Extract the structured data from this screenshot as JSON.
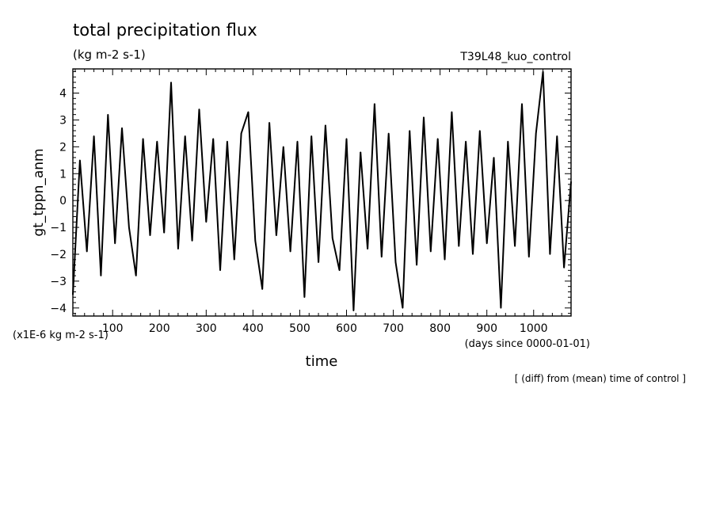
{
  "chart_data": {
    "type": "line",
    "title": "total precipitation flux",
    "units": "(kg m-2 s-1)",
    "run_label": "T39L48_kuo_control",
    "ylabel": "gt_tppn_anm",
    "xlabel": "time",
    "y_scale_note": "(x1E-6 kg m-2 s-1)",
    "x_units_note": "(days since 0000-01-01)",
    "footer_note": "[ (diff) from (mean) time of control ]",
    "xlim": [
      15,
      1080
    ],
    "ylim": [
      -4.3,
      4.9
    ],
    "x_ticks": [
      100,
      200,
      300,
      400,
      500,
      600,
      700,
      800,
      900,
      1000
    ],
    "y_ticks": [
      -4,
      -3,
      -2,
      -1,
      0,
      1,
      2,
      3,
      4
    ],
    "grid": false,
    "series": [
      {
        "x": [
          15,
          30,
          45,
          60,
          75,
          90,
          105,
          120,
          135,
          150,
          165,
          180,
          195,
          210,
          225,
          240,
          255,
          270,
          285,
          300,
          315,
          330,
          345,
          360,
          375,
          390,
          405,
          420,
          435,
          450,
          465,
          480,
          495,
          510,
          525,
          540,
          555,
          570,
          585,
          600,
          615,
          630,
          645,
          660,
          675,
          690,
          705,
          720,
          735,
          750,
          765,
          780,
          795,
          810,
          825,
          840,
          855,
          870,
          885,
          900,
          915,
          930,
          945,
          960,
          975,
          990,
          1005,
          1020,
          1035,
          1050,
          1065,
          1080
        ],
        "values": [
          -3.5,
          1.5,
          -1.9,
          2.4,
          -2.8,
          3.2,
          -1.6,
          2.7,
          -1.0,
          -2.8,
          2.3,
          -1.3,
          2.2,
          -1.2,
          4.4,
          -1.8,
          2.4,
          -1.5,
          3.4,
          -0.8,
          2.3,
          -2.6,
          2.2,
          -2.2,
          2.5,
          3.3,
          -1.5,
          -3.3,
          2.9,
          -1.3,
          2.0,
          -1.9,
          2.2,
          -3.6,
          2.4,
          -2.3,
          2.8,
          -1.4,
          -2.6,
          2.3,
          -4.1,
          1.8,
          -1.8,
          3.6,
          -2.1,
          2.5,
          -2.3,
          -4.0,
          2.6,
          -2.4,
          3.1,
          -1.9,
          2.3,
          -2.2,
          3.3,
          -1.7,
          2.2,
          -2.0,
          2.6,
          -1.6,
          1.6,
          -4.0,
          2.2,
          -1.7,
          3.6,
          -2.1,
          2.5,
          4.8,
          -2.0,
          2.4,
          -2.5,
          0.7
        ]
      }
    ]
  }
}
